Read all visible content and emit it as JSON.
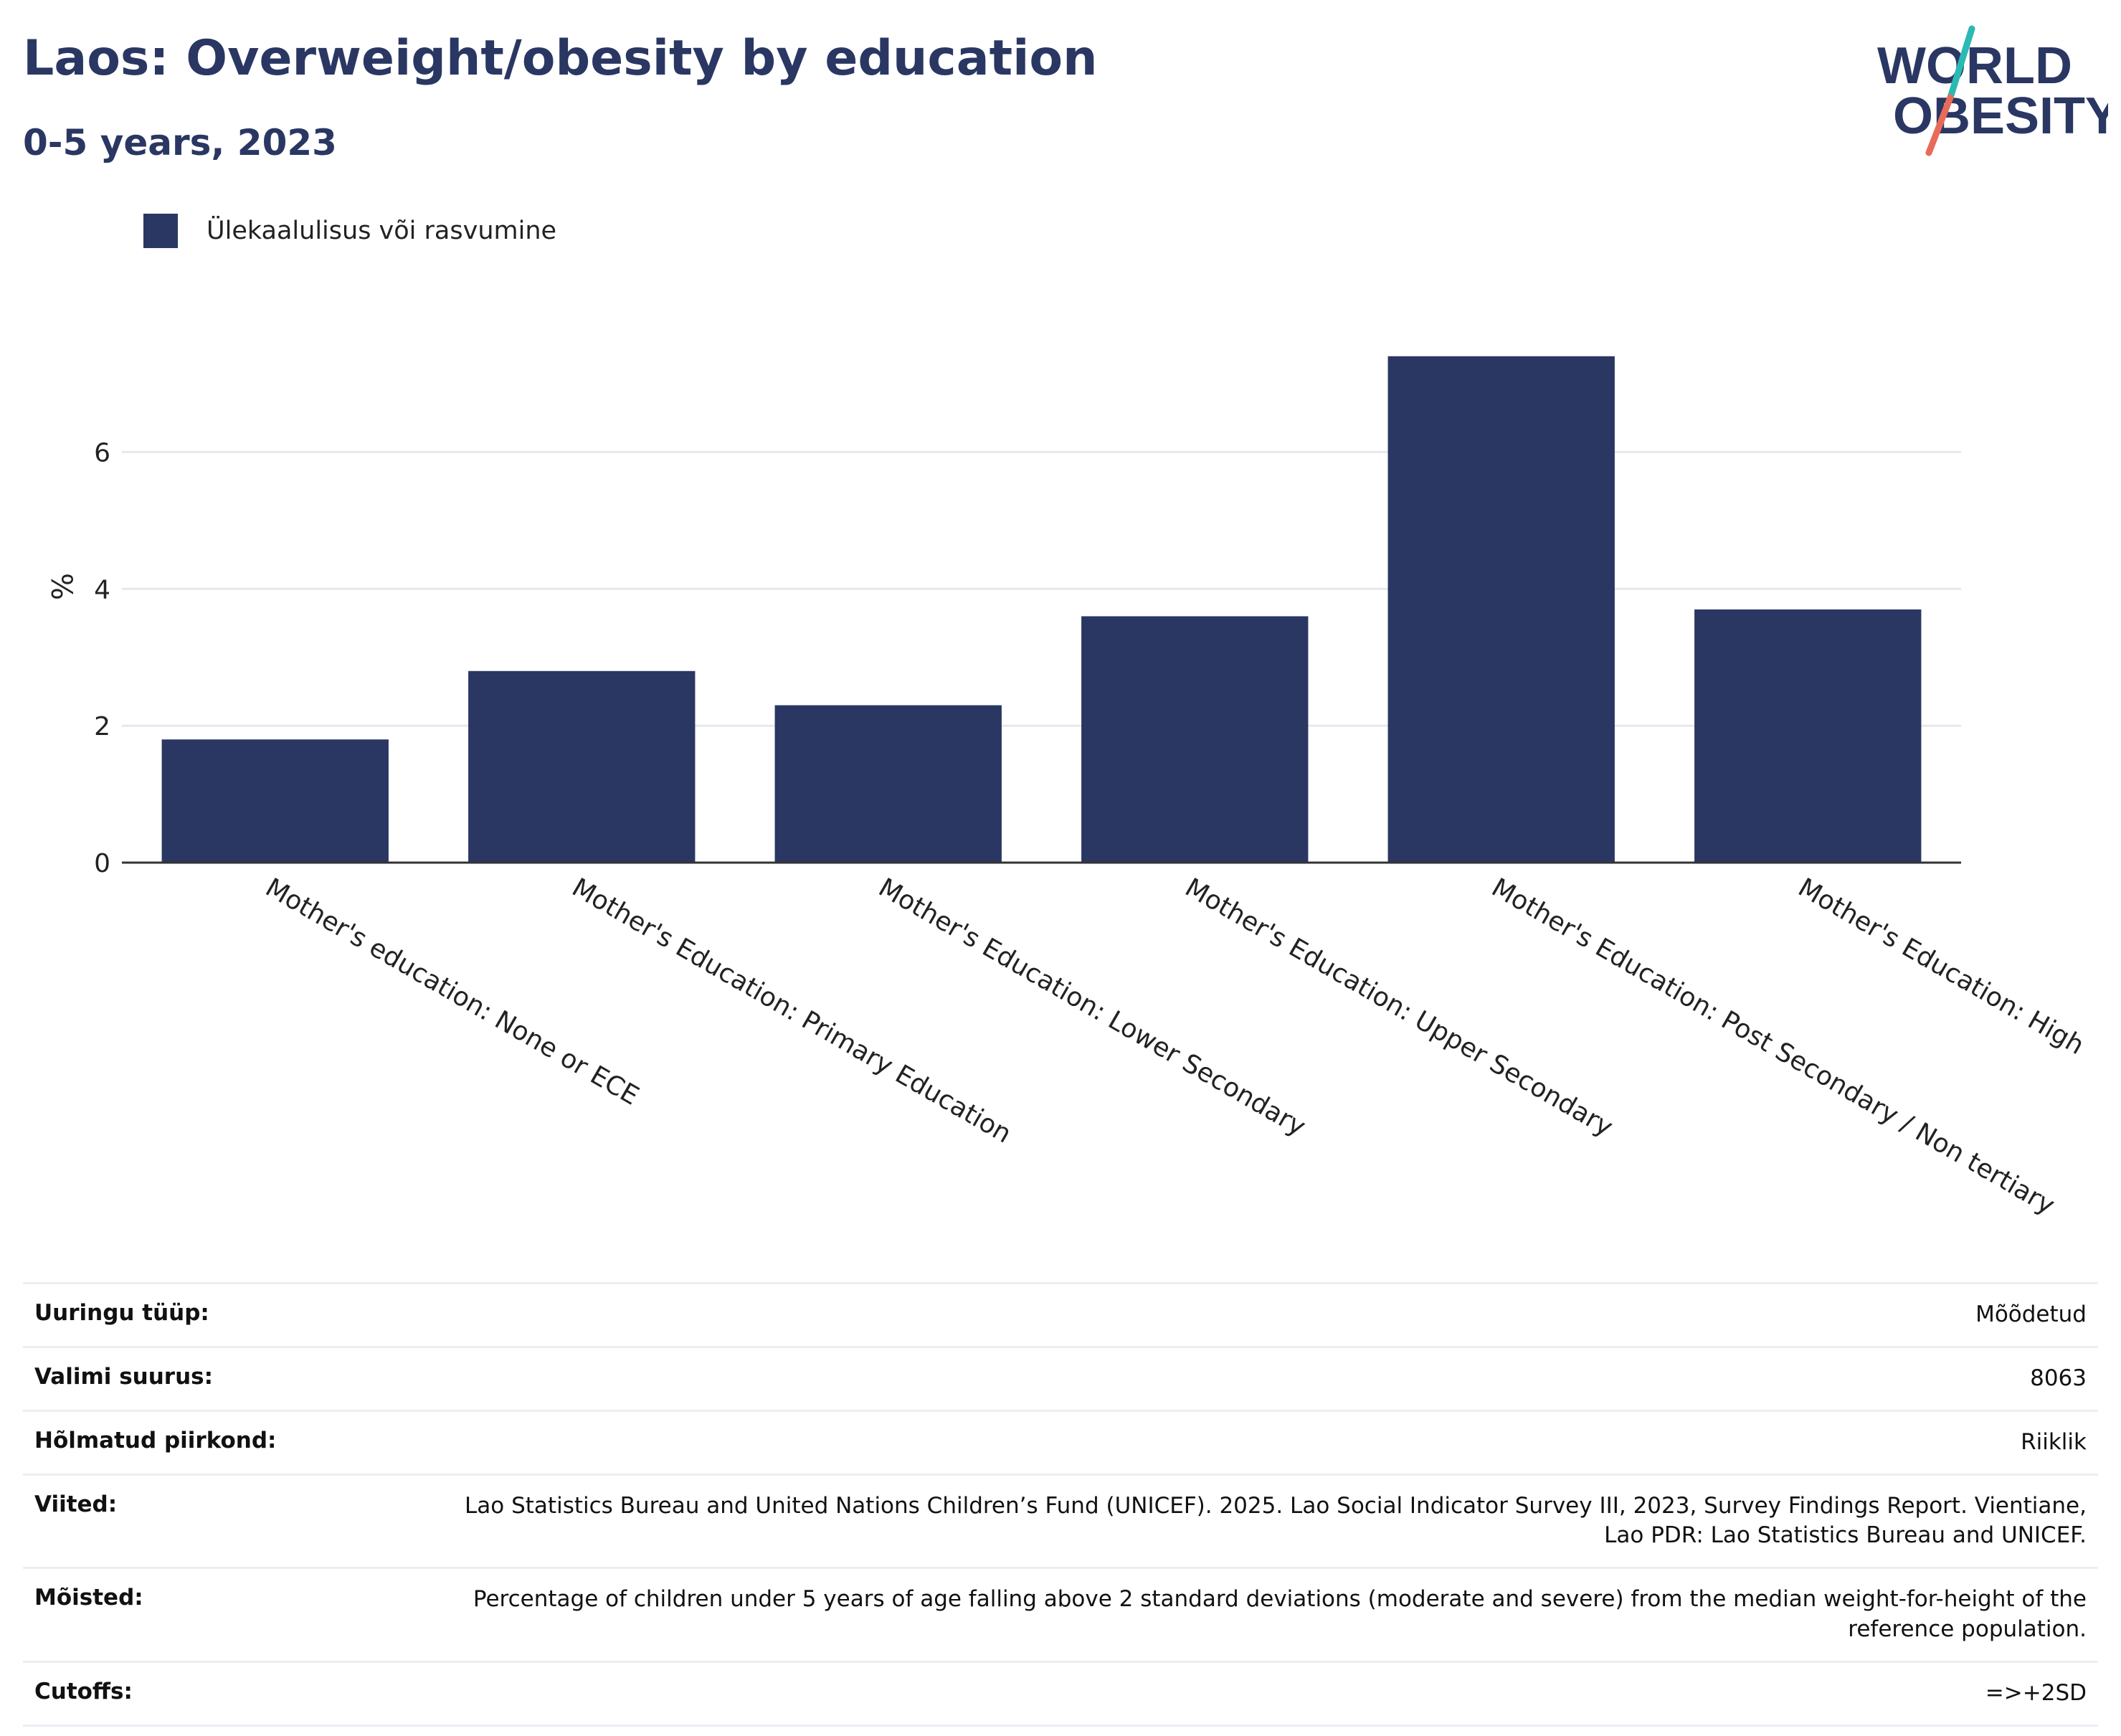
{
  "header": {
    "title": "Laos: Overweight/obesity by education",
    "subtitle": "0-5 years, 2023"
  },
  "logo": {
    "line1": "WORLD",
    "line2": "OBESITY",
    "colors": {
      "text": "#2a3763",
      "slash_top": "#2bb9b4",
      "slash_bottom": "#e86b5a"
    }
  },
  "colors": {
    "bar": "#2a3763",
    "grid": "#e6e8ee",
    "axis": "#333333"
  },
  "chart_data": {
    "type": "bar",
    "categories": [
      "Mother's education: None or ECE",
      "Mother's Education: Primary Education",
      "Mother's Education: Lower Secondary",
      "Mother's Education: Upper Secondary",
      "Mother's Education: Post Secondary / Non tertiary",
      "Mother's Education: High"
    ],
    "series": [
      {
        "name": "Ülekaalulisus või rasvumine",
        "values": [
          1.8,
          2.8,
          2.3,
          3.6,
          7.4,
          3.7
        ]
      }
    ],
    "ylabel": "%",
    "xlabel": "",
    "ylim": [
      0,
      8.1
    ],
    "yticks": [
      0,
      2,
      4,
      6
    ],
    "grid": true,
    "legend_position": "top-left"
  },
  "info": [
    {
      "key": "Uuringu tüüp:",
      "value": "Mõõdetud"
    },
    {
      "key": "Valimi suurus:",
      "value": "8063"
    },
    {
      "key": "Hõlmatud piirkond:",
      "value": "Riiklik"
    },
    {
      "key": "Viited:",
      "value": "Lao Statistics Bureau and United Nations Children’s Fund (UNICEF). 2025. Lao Social Indicator Survey III, 2023, Survey Findings Report. Vientiane, Lao PDR: Lao Statistics Bureau and UNICEF."
    },
    {
      "key": "Mõisted:",
      "value": "Percentage of children under 5 years of age falling above 2 standard deviations (moderate and severe) from the median weight-for-height of the reference population."
    },
    {
      "key": "Cutoffs:",
      "value": "=>+2SD"
    }
  ]
}
